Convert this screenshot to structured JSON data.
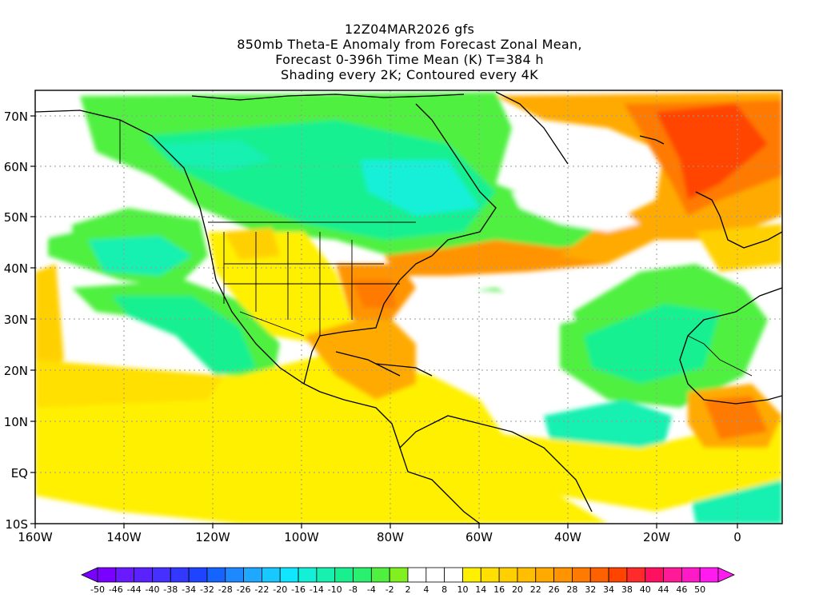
{
  "title": {
    "line1": "12Z04MAR2026 gfs",
    "line2": "850mb Theta-E Anomaly from Forecast Zonal Mean,",
    "line3": "Forecast 0-396h Time Mean (K) T=384 h",
    "line4": "Shading every 2K; Contoured every 4K"
  },
  "axes": {
    "lon_ticks": [
      "160W",
      "140W",
      "120W",
      "100W",
      "80W",
      "60W",
      "40W",
      "20W",
      "0"
    ],
    "lat_ticks": [
      "70N",
      "60N",
      "50N",
      "40N",
      "30N",
      "20N",
      "10N",
      "EQ",
      "10S"
    ]
  },
  "colorbar": {
    "labels": [
      "-50",
      "-46",
      "-44",
      "-40",
      "-38",
      "-34",
      "-32",
      "-28",
      "-26",
      "-22",
      "-20",
      "-16",
      "-14",
      "-10",
      "-8",
      "-4",
      "-2",
      "2",
      "4",
      "8",
      "10",
      "14",
      "16",
      "20",
      "22",
      "26",
      "28",
      "32",
      "34",
      "38",
      "40",
      "44",
      "46",
      "50"
    ],
    "colors": [
      "#7a00ff",
      "#6a1aff",
      "#5a22ff",
      "#4630ff",
      "#3238ff",
      "#1e44ff",
      "#1664ff",
      "#1e88ff",
      "#1ea8ff",
      "#18c8ff",
      "#10e6ff",
      "#14f0d8",
      "#18f0b0",
      "#18f090",
      "#2af070",
      "#50f040",
      "#80f020",
      "#ffffff",
      "#ffffff",
      "#ffffff",
      "#fff000",
      "#ffe000",
      "#ffd000",
      "#ffbf00",
      "#ffaa00",
      "#ff9400",
      "#ff7a00",
      "#ff6000",
      "#ff4400",
      "#ff2a2a",
      "#ff1060",
      "#ff1a98",
      "#ff1ac8",
      "#ff1af0"
    ]
  },
  "legend_colors": {
    "cool": "#2af070",
    "cyan": "#18f0b0",
    "warm_yellow": "#fff000",
    "warm_orange": "#ffaa00",
    "hot": "#ff4400"
  }
}
